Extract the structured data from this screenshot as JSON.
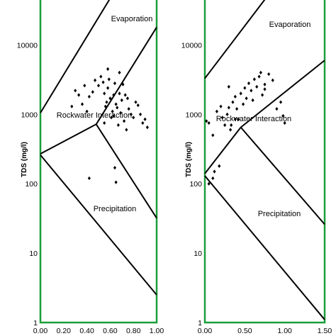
{
  "chart_data": [
    {
      "type": "scatter",
      "panel": "left",
      "ylabel": "TDS (mg/l)",
      "xlabel": "",
      "yscale": "log",
      "ylim": [
        1,
        50000
      ],
      "xlim": [
        0,
        1
      ],
      "frame_color": "#1a9e3a",
      "y_ticks": [
        "1",
        "10",
        "100",
        "1000",
        "10000"
      ],
      "x_ticks": [
        "0.00",
        "0.20",
        "0.40",
        "0.60",
        "0.80",
        "1.00"
      ],
      "regions": [
        "Evaporation",
        "Rockwater Interaction",
        "Precipitation"
      ],
      "boundaries": [
        {
          "name": "upper-left",
          "points": [
            [
              0.0,
              1050
            ],
            [
              0.61,
              50000
            ]
          ]
        },
        {
          "name": "upper-right",
          "points": [
            [
              0.48,
              720
            ],
            [
              1.0,
              18000
            ]
          ]
        },
        {
          "name": "lower-left",
          "points": [
            [
              0.0,
              270
            ],
            [
              0.48,
              720
            ]
          ]
        },
        {
          "name": "lower-right",
          "points": [
            [
              0.48,
              720
            ],
            [
              1.0,
              32
            ]
          ]
        },
        {
          "name": "bottom",
          "points": [
            [
              0.0,
              260
            ],
            [
              1.0,
              2.5
            ]
          ]
        }
      ],
      "points": [
        [
          0.27,
          1300
        ],
        [
          0.3,
          2200
        ],
        [
          0.33,
          1900
        ],
        [
          0.36,
          1400
        ],
        [
          0.38,
          2600
        ],
        [
          0.4,
          1100
        ],
        [
          0.42,
          1800
        ],
        [
          0.45,
          2100
        ],
        [
          0.47,
          3100
        ],
        [
          0.5,
          2600
        ],
        [
          0.52,
          3500
        ],
        [
          0.54,
          2900
        ],
        [
          0.55,
          2000
        ],
        [
          0.56,
          1300
        ],
        [
          0.57,
          1500
        ],
        [
          0.58,
          2400
        ],
        [
          0.59,
          3200
        ],
        [
          0.6,
          1700
        ],
        [
          0.61,
          900
        ],
        [
          0.62,
          1100
        ],
        [
          0.63,
          1900
        ],
        [
          0.64,
          2800
        ],
        [
          0.65,
          1400
        ],
        [
          0.66,
          1250
        ],
        [
          0.67,
          700
        ],
        [
          0.68,
          2000
        ],
        [
          0.69,
          1050
        ],
        [
          0.7,
          1600
        ],
        [
          0.71,
          2700
        ],
        [
          0.72,
          800
        ],
        [
          0.73,
          1900
        ],
        [
          0.74,
          600
        ],
        [
          0.75,
          1700
        ],
        [
          0.76,
          1200
        ],
        [
          0.78,
          1000
        ],
        [
          0.8,
          900
        ],
        [
          0.82,
          1500
        ],
        [
          0.84,
          1350
        ],
        [
          0.86,
          1000
        ],
        [
          0.88,
          750
        ],
        [
          0.9,
          850
        ],
        [
          0.92,
          650
        ],
        [
          0.68,
          4000
        ],
        [
          0.58,
          4500
        ],
        [
          0.55,
          750
        ],
        [
          0.63,
          950
        ],
        [
          0.42,
          120
        ],
        [
          0.64,
          170
        ],
        [
          0.65,
          105
        ]
      ]
    },
    {
      "type": "scatter",
      "panel": "right",
      "ylabel": "TDS (mg/l)",
      "xlabel": "",
      "yscale": "log",
      "ylim": [
        1,
        50000
      ],
      "xlim": [
        0,
        1.5
      ],
      "frame_color": "#1a9e3a",
      "y_ticks": [
        "1",
        "10",
        "100",
        "1000",
        "10000"
      ],
      "x_ticks": [
        "0.00",
        "0.50",
        "1.00",
        "1.50"
      ],
      "regions": [
        "Evaporation",
        "Rockwater Interaction",
        "Precipitation"
      ],
      "boundaries": [
        {
          "name": "upper-left",
          "points": [
            [
              0.0,
              3300
            ],
            [
              0.78,
              50000
            ]
          ]
        },
        {
          "name": "upper-right",
          "points": [
            [
              0.45,
              650
            ],
            [
              1.5,
              6000
            ]
          ]
        },
        {
          "name": "lower-left",
          "points": [
            [
              0.0,
              140
            ],
            [
              0.45,
              650
            ]
          ]
        },
        {
          "name": "lower-right",
          "points": [
            [
              0.45,
              650
            ],
            [
              1.5,
              26
            ]
          ]
        },
        {
          "name": "bottom",
          "points": [
            [
              0.0,
              130
            ],
            [
              1.5,
              1.1
            ]
          ]
        }
      ],
      "points": [
        [
          0.02,
          800
        ],
        [
          0.05,
          750
        ],
        [
          0.1,
          500
        ],
        [
          0.15,
          1100
        ],
        [
          0.2,
          1300
        ],
        [
          0.22,
          900
        ],
        [
          0.25,
          700
        ],
        [
          0.28,
          1000
        ],
        [
          0.3,
          1250
        ],
        [
          0.32,
          600
        ],
        [
          0.35,
          1500
        ],
        [
          0.38,
          1800
        ],
        [
          0.4,
          1200
        ],
        [
          0.42,
          850
        ],
        [
          0.45,
          2000
        ],
        [
          0.48,
          1400
        ],
        [
          0.5,
          2400
        ],
        [
          0.52,
          1700
        ],
        [
          0.55,
          2800
        ],
        [
          0.58,
          2200
        ],
        [
          0.6,
          1600
        ],
        [
          0.62,
          3200
        ],
        [
          0.65,
          2500
        ],
        [
          0.68,
          3500
        ],
        [
          0.7,
          4000
        ],
        [
          0.72,
          1900
        ],
        [
          0.75,
          2700
        ],
        [
          0.8,
          3800
        ],
        [
          0.85,
          3100
        ],
        [
          0.9,
          1200
        ],
        [
          0.95,
          1500
        ],
        [
          0.98,
          950
        ],
        [
          1.0,
          750
        ],
        [
          0.3,
          2500
        ],
        [
          0.38,
          850
        ],
        [
          0.12,
          150
        ],
        [
          0.05,
          100
        ],
        [
          0.1,
          120
        ],
        [
          0.18,
          180
        ],
        [
          0.75,
          2300
        ],
        [
          0.33,
          700
        ]
      ]
    }
  ]
}
